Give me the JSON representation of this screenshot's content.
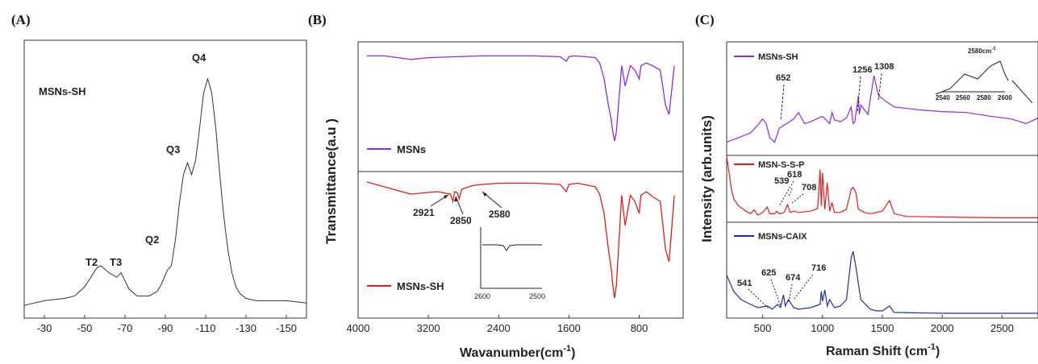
{
  "panels": {
    "A": {
      "label": "(A)",
      "sample": "MSNs-SH",
      "peak_labels": [
        "Q4",
        "Q3",
        "Q2",
        "T2",
        "T3"
      ],
      "xticks": [
        "-30",
        "-50",
        "-70",
        "-90",
        "-110",
        "-130",
        "-150"
      ]
    },
    "B": {
      "label": "(B)",
      "ylabel": "Transmittance(a.u )",
      "xlabel": "Wavanumber(cm",
      "xlabel_sup": "-1",
      "xlabel_end": ")",
      "xticks": [
        "4000",
        "3200",
        "2400",
        "1600",
        "800"
      ],
      "legend_top": "MSNs",
      "legend_bottom": "MSNs-SH",
      "ann": [
        "2921",
        "2850",
        "2580"
      ],
      "inset_ticks": [
        "2600",
        "2500"
      ]
    },
    "C": {
      "label": "(C)",
      "ylabel": "Intensity (arb.units)",
      "xlabel": "Raman Shift (cm",
      "xlabel_sup": "-1",
      "xlabel_end": ")",
      "xticks": [
        "500",
        "1000",
        "1500",
        "2000",
        "2500"
      ],
      "legend": [
        "MSNs-SH",
        "MSN-S-S-P",
        "MSNs-CAIX"
      ],
      "ann_top": [
        "652",
        "1256",
        "1308"
      ],
      "ann_mid": [
        "539",
        "618",
        "708"
      ],
      "ann_bot": [
        "541",
        "625",
        "674",
        "716"
      ],
      "inset_peak": "2580cm",
      "inset_peak_sup": "-1",
      "inset_ticks": [
        "2540",
        "2560",
        "2580",
        "2600"
      ]
    }
  },
  "colors": {
    "purple": "#8a2be2",
    "red": "#e41b1b",
    "blue": "#1f2fa8",
    "dark": "#333333"
  },
  "chart_data": [
    {
      "type": "line",
      "panel": "A",
      "xlabel": "",
      "ylabel": "",
      "xlim": [
        -20,
        -160
      ],
      "series": [
        {
          "name": "MSNs-SH",
          "x": [
            -20,
            -30,
            -40,
            -45,
            -50,
            -53,
            -56,
            -58,
            -62,
            -66,
            -68,
            -72,
            -76,
            -82,
            -86,
            -88,
            -91,
            -93,
            -95,
            -97,
            -99,
            -101,
            -103,
            -105,
            -107,
            -109,
            -111,
            -113,
            -115,
            -117,
            -119,
            -121,
            -123,
            -125,
            -127,
            -130,
            -135,
            -140,
            -150,
            -160
          ],
          "y": [
            0.02,
            0.04,
            0.05,
            0.06,
            0.1,
            0.14,
            0.18,
            0.19,
            0.16,
            0.14,
            0.16,
            0.09,
            0.06,
            0.06,
            0.08,
            0.11,
            0.17,
            0.19,
            0.3,
            0.46,
            0.58,
            0.63,
            0.58,
            0.64,
            0.78,
            0.93,
            0.99,
            0.93,
            0.78,
            0.58,
            0.4,
            0.26,
            0.16,
            0.1,
            0.07,
            0.05,
            0.04,
            0.04,
            0.04,
            0.03
          ]
        }
      ]
    },
    {
      "type": "line",
      "panel": "B",
      "xlim": [
        4000,
        300
      ],
      "series": [
        {
          "name": "MSNs",
          "x": [
            3900,
            3700,
            3400,
            3200,
            2900,
            2600,
            2300,
            2000,
            1700,
            1630,
            1600,
            1550,
            1400,
            1300,
            1250,
            1200,
            1150,
            1120,
            1100,
            1080,
            1060,
            1000,
            960,
            900,
            850,
            800,
            780,
            720,
            650,
            560,
            500,
            460,
            400
          ],
          "y": [
            0.96,
            0.96,
            0.92,
            0.94,
            0.95,
            0.96,
            0.96,
            0.96,
            0.95,
            0.9,
            0.95,
            0.96,
            0.95,
            0.94,
            0.88,
            0.7,
            0.4,
            0.25,
            0.1,
            0.0,
            0.1,
            0.85,
            0.62,
            0.85,
            0.8,
            0.7,
            0.85,
            0.88,
            0.85,
            0.8,
            0.4,
            0.3,
            0.85
          ]
        },
        {
          "name": "MSNs-SH",
          "x": [
            3900,
            3700,
            3400,
            3100,
            2950,
            2921,
            2900,
            2870,
            2850,
            2820,
            2700,
            2580,
            2400,
            2000,
            1700,
            1630,
            1600,
            1500,
            1300,
            1250,
            1200,
            1150,
            1120,
            1100,
            1080,
            1060,
            1000,
            960,
            900,
            850,
            800,
            780,
            720,
            650,
            560,
            500,
            460,
            400
          ],
          "y": [
            0.96,
            0.92,
            0.86,
            0.88,
            0.86,
            0.8,
            0.88,
            0.87,
            0.82,
            0.9,
            0.93,
            0.94,
            0.95,
            0.95,
            0.94,
            0.88,
            0.94,
            0.95,
            0.92,
            0.86,
            0.7,
            0.4,
            0.25,
            0.1,
            0.0,
            0.1,
            0.85,
            0.6,
            0.85,
            0.8,
            0.7,
            0.85,
            0.88,
            0.84,
            0.8,
            0.4,
            0.3,
            0.85
          ]
        }
      ]
    },
    {
      "type": "line",
      "panel": "C",
      "xlabel": "Raman Shift (cm-1)",
      "ylabel": "Intensity (arb.units)",
      "xlim": [
        200,
        2800
      ],
      "series": [
        {
          "name": "MSNs-SH",
          "x": [
            200,
            300,
            400,
            470,
            500,
            530,
            560,
            600,
            640,
            700,
            760,
            800,
            850,
            900,
            1000,
            1060,
            1080,
            1100,
            1150,
            1200,
            1240,
            1256,
            1270,
            1300,
            1308,
            1320,
            1380,
            1430,
            1450,
            1470,
            1520,
            1600,
            1800,
            2000,
            2200,
            2400,
            2580,
            2700,
            2800
          ],
          "y": [
            0.1,
            0.15,
            0.2,
            0.3,
            0.35,
            0.3,
            0.15,
            0.1,
            0.25,
            0.3,
            0.35,
            0.42,
            0.3,
            0.32,
            0.38,
            0.3,
            0.42,
            0.34,
            0.32,
            0.36,
            0.48,
            0.3,
            0.32,
            0.6,
            0.4,
            0.5,
            0.4,
            0.82,
            0.7,
            0.6,
            0.55,
            0.48,
            0.45,
            0.43,
            0.42,
            0.38,
            0.35,
            0.3,
            0.36
          ]
        },
        {
          "name": "MSN-S-S-P",
          "x": [
            200,
            220,
            240,
            260,
            280,
            300,
            360,
            400,
            430,
            460,
            500,
            539,
            560,
            600,
            618,
            640,
            680,
            708,
            730,
            760,
            800,
            900,
            960,
            980,
            990,
            1000,
            1020,
            1040,
            1060,
            1080,
            1100,
            1150,
            1200,
            1240,
            1256,
            1280,
            1300,
            1350,
            1400,
            1450,
            1500,
            1560,
            1600,
            1700,
            2000,
            2500,
            2800
          ],
          "y": [
            0.95,
            0.7,
            0.45,
            0.3,
            0.25,
            0.2,
            0.12,
            0.08,
            0.14,
            0.06,
            0.1,
            0.18,
            0.08,
            0.08,
            0.12,
            0.08,
            0.1,
            0.22,
            0.1,
            0.12,
            0.1,
            0.12,
            0.16,
            0.75,
            0.2,
            0.7,
            0.15,
            0.55,
            0.12,
            0.25,
            0.1,
            0.1,
            0.15,
            0.45,
            0.48,
            0.4,
            0.15,
            0.1,
            0.08,
            0.1,
            0.12,
            0.28,
            0.08,
            0.04,
            0.03,
            0.02,
            0.02
          ]
        },
        {
          "name": "MSNs-CAIX",
          "x": [
            200,
            260,
            320,
            400,
            460,
            541,
            580,
            625,
            650,
            674,
            690,
            716,
            760,
            800,
            900,
            980,
            990,
            1000,
            1020,
            1040,
            1060,
            1100,
            1150,
            1200,
            1240,
            1256,
            1280,
            1320,
            1400,
            1450,
            1500,
            1560,
            1600,
            2000,
            2500,
            2800
          ],
          "y": [
            0.5,
            0.3,
            0.2,
            0.14,
            0.1,
            0.12,
            0.08,
            0.14,
            0.1,
            0.26,
            0.12,
            0.2,
            0.1,
            0.08,
            0.1,
            0.14,
            0.3,
            0.18,
            0.32,
            0.12,
            0.2,
            0.1,
            0.12,
            0.2,
            0.72,
            0.8,
            0.6,
            0.2,
            0.08,
            0.06,
            0.06,
            0.12,
            0.04,
            0.03,
            0.03,
            0.03
          ]
        }
      ]
    }
  ]
}
